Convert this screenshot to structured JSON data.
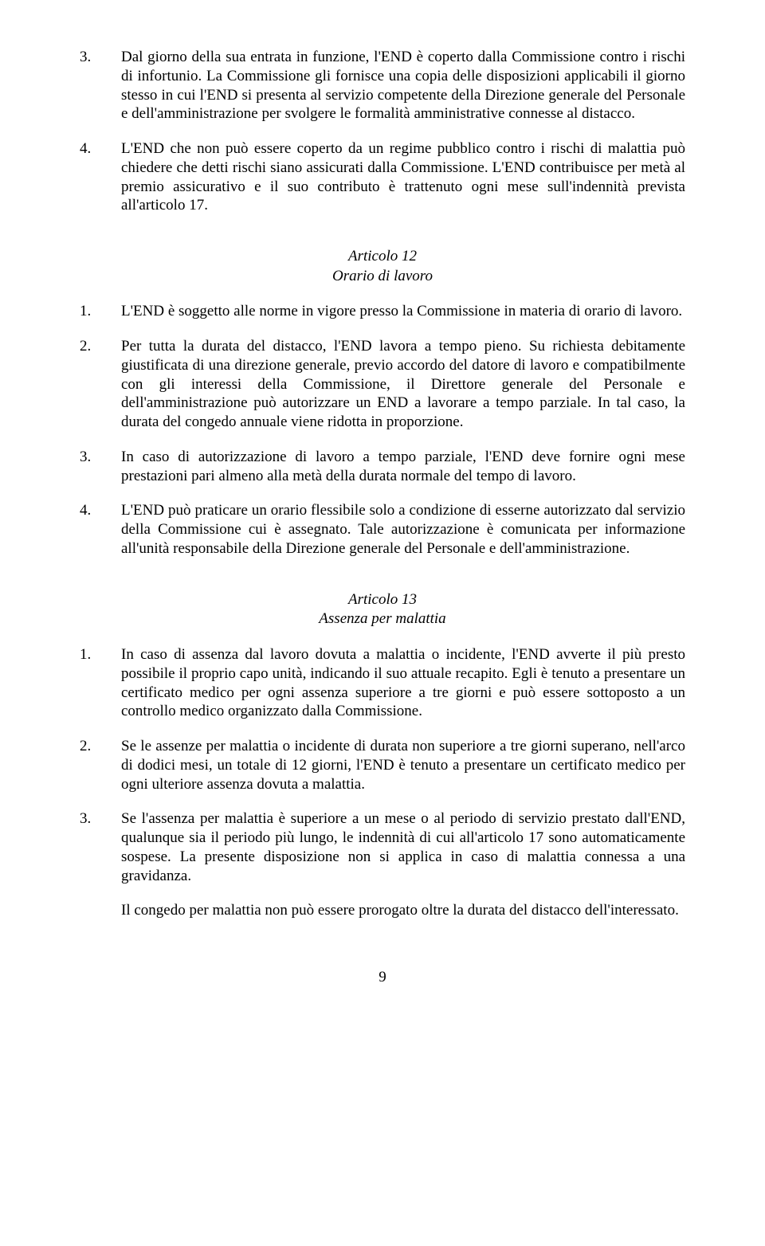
{
  "section_pre": {
    "items": [
      {
        "num": "3.",
        "text": "Dal giorno della sua entrata in funzione, l'END è coperto dalla Commissione contro i rischi di infortunio. La Commissione gli fornisce una copia delle disposizioni applicabili il giorno stesso in cui l'END si presenta al servizio competente della Direzione generale del Personale e dell'amministrazione per svolgere le formalità amministrative connesse al distacco."
      },
      {
        "num": "4.",
        "text": "L'END che non può essere coperto da un regime pubblico contro i rischi di malattia può chiedere che detti rischi siano assicurati dalla Commissione. L'END contribuisce per metà al premio assicurativo e il suo contributo è trattenuto ogni mese sull'indennità prevista all'articolo 17."
      }
    ]
  },
  "article12": {
    "title": "Articolo 12",
    "subtitle": "Orario di lavoro",
    "items": [
      {
        "num": "1.",
        "text": "L'END è soggetto alle norme in vigore presso la Commissione in materia di orario di lavoro."
      },
      {
        "num": "2.",
        "text": "Per tutta la durata del distacco, l'END lavora a tempo pieno. Su richiesta debitamente giustificata di una direzione generale, previo accordo del datore di lavoro e compatibilmente con gli interessi della Commissione, il Direttore generale del Personale e dell'amministrazione può autorizzare un END a lavorare a tempo parziale. In tal caso, la durata del congedo annuale viene ridotta in proporzione."
      },
      {
        "num": "3.",
        "text": "In caso di autorizzazione di lavoro a tempo parziale, l'END deve fornire ogni mese prestazioni pari almeno alla metà della durata normale del tempo di lavoro."
      },
      {
        "num": "4.",
        "text": "L'END può praticare un orario flessibile solo a condizione di esserne autorizzato dal servizio della Commissione cui è assegnato. Tale autorizzazione è comunicata per informazione all'unità responsabile della Direzione generale del Personale e dell'amministrazione."
      }
    ]
  },
  "article13": {
    "title": "Articolo 13",
    "subtitle": "Assenza per malattia",
    "items": [
      {
        "num": "1.",
        "text": "In caso di assenza dal lavoro dovuta a malattia o incidente, l'END avverte il più presto possibile il proprio capo unità, indicando il suo attuale recapito. Egli è tenuto a presentare un certificato medico per ogni assenza superiore a tre giorni e può essere sottoposto a un controllo medico organizzato dalla Commissione."
      },
      {
        "num": "2.",
        "text": "Se le assenze per malattia o incidente di durata non superiore a tre giorni superano, nell'arco di dodici mesi, un totale di 12 giorni, l'END è tenuto a presentare un certificato medico per ogni ulteriore assenza dovuta a malattia."
      },
      {
        "num": "3.",
        "text": "Se l'assenza per malattia è superiore a un mese o al periodo di servizio prestato dall'END, qualunque sia il periodo più lungo, le indennità di cui all'articolo 17 sono automaticamente sospese. La presente disposizione non si applica in caso di malattia connessa a una gravidanza."
      }
    ],
    "trailing": "Il congedo per malattia non può essere prorogato oltre la durata del distacco dell'interessato."
  },
  "page_number": "9"
}
